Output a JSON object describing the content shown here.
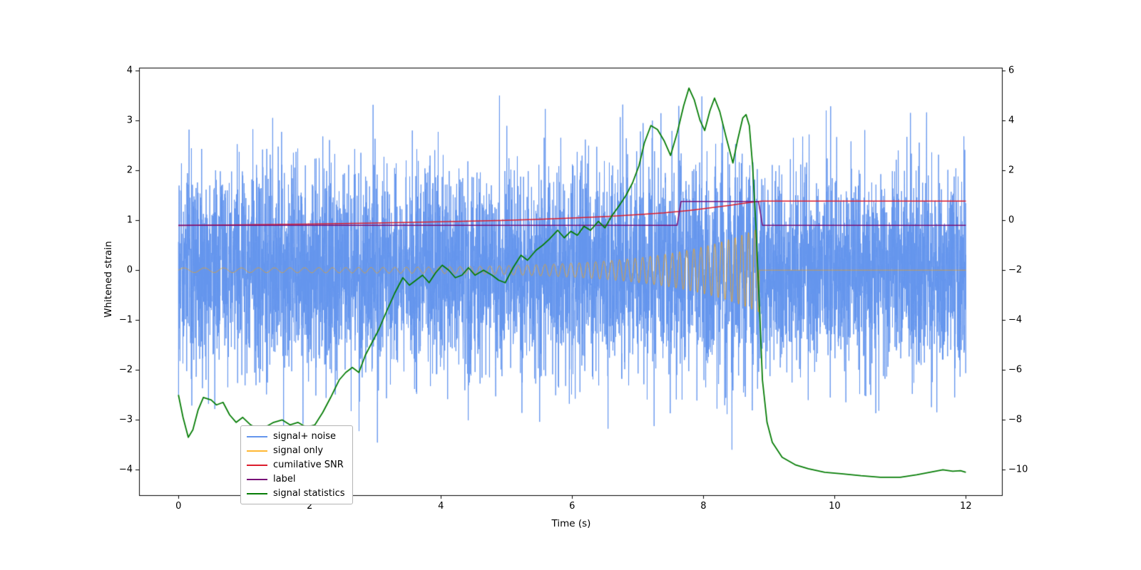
{
  "figure": {
    "background": "#ffffff"
  },
  "chart_data": {
    "type": "line",
    "title": "",
    "xlabel": "Time (s)",
    "ylabel": "Whitened strain",
    "xlim": [
      -0.6,
      12.55
    ],
    "ylim_left": [
      -4.51,
      4.06
    ],
    "right_axis_transform": "right = 2*left - 2",
    "grid": false,
    "legend_position": "lower left inside",
    "x_ticks": [
      "0",
      "2",
      "4",
      "6",
      "8",
      "10",
      "12"
    ],
    "x_tick_values": [
      0,
      2,
      4,
      6,
      8,
      10,
      12
    ],
    "left_ticks": [
      "4",
      "3",
      "2",
      "1",
      "0",
      "−1",
      "−2",
      "−3",
      "−4"
    ],
    "left_tick_values": [
      4,
      3,
      2,
      1,
      0,
      -1,
      -2,
      -3,
      -4
    ],
    "right_ticks": [
      "6",
      "4",
      "2",
      "0",
      "−2",
      "−4",
      "−6",
      "−8",
      "−10"
    ],
    "right_tick_values": [
      6,
      4,
      2,
      0,
      -2,
      -4,
      -6,
      -8,
      -10
    ],
    "series": [
      {
        "name": "signal+ noise",
        "color": "#6495ed",
        "type": "noise_plus_chirp",
        "n": 6000,
        "t_range": [
          0,
          12
        ],
        "noise_std": 1.0,
        "seed": 7,
        "linewidth": 1
      },
      {
        "name": "signal only",
        "color": "#ffa500",
        "alpha": 0.75,
        "type": "chirp",
        "n": 4800,
        "t_range": [
          0,
          12
        ],
        "cutoff": 8.85,
        "amp_base": 0.045,
        "amp_peak": 0.8,
        "amp_tau": 1.35,
        "f0": 3.0,
        "chirp_rate": 0.8,
        "linewidth": 1
      },
      {
        "name": "cumilative SNR",
        "color": "#dc1c2c",
        "type": "polyline",
        "linewidth": 1.5,
        "points": [
          [
            0,
            0.895
          ],
          [
            1,
            0.91
          ],
          [
            2,
            0.925
          ],
          [
            3,
            0.945
          ],
          [
            4,
            0.97
          ],
          [
            5,
            1.0
          ],
          [
            5.5,
            1.02
          ],
          [
            6,
            1.045
          ],
          [
            6.5,
            1.075
          ],
          [
            7,
            1.115
          ],
          [
            7.4,
            1.15
          ],
          [
            7.8,
            1.2
          ],
          [
            8.1,
            1.25
          ],
          [
            8.4,
            1.3
          ],
          [
            8.6,
            1.34
          ],
          [
            8.8,
            1.375
          ],
          [
            8.9,
            1.385
          ],
          [
            12,
            1.385
          ]
        ]
      },
      {
        "name": "label",
        "color": "#770f77",
        "type": "polyline",
        "linewidth": 1.5,
        "points": [
          [
            0,
            0.9
          ],
          [
            7.6,
            0.9
          ],
          [
            7.66,
            1.38
          ],
          [
            8.84,
            1.38
          ],
          [
            8.9,
            0.9
          ],
          [
            12,
            0.9
          ]
        ]
      },
      {
        "name": "signal statistics",
        "color": "#067d06",
        "type": "polyline",
        "linewidth": 1.8,
        "points": [
          [
            0,
            -2.5
          ],
          [
            0.07,
            -2.95
          ],
          [
            0.15,
            -3.35
          ],
          [
            0.22,
            -3.2
          ],
          [
            0.3,
            -2.8
          ],
          [
            0.38,
            -2.55
          ],
          [
            0.5,
            -2.6
          ],
          [
            0.58,
            -2.7
          ],
          [
            0.68,
            -2.65
          ],
          [
            0.78,
            -2.9
          ],
          [
            0.88,
            -3.05
          ],
          [
            0.98,
            -2.95
          ],
          [
            1.1,
            -3.1
          ],
          [
            1.22,
            -3.2
          ],
          [
            1.32,
            -3.15
          ],
          [
            1.45,
            -3.05
          ],
          [
            1.58,
            -3.0
          ],
          [
            1.7,
            -3.1
          ],
          [
            1.82,
            -3.05
          ],
          [
            1.95,
            -3.15
          ],
          [
            2.08,
            -3.1
          ],
          [
            2.2,
            -2.85
          ],
          [
            2.32,
            -2.55
          ],
          [
            2.45,
            -2.2
          ],
          [
            2.55,
            -2.05
          ],
          [
            2.65,
            -1.95
          ],
          [
            2.75,
            -2.05
          ],
          [
            2.85,
            -1.7
          ],
          [
            2.95,
            -1.45
          ],
          [
            3.05,
            -1.2
          ],
          [
            3.18,
            -0.8
          ],
          [
            3.3,
            -0.45
          ],
          [
            3.42,
            -0.15
          ],
          [
            3.52,
            -0.3
          ],
          [
            3.62,
            -0.2
          ],
          [
            3.72,
            -0.1
          ],
          [
            3.82,
            -0.25
          ],
          [
            3.92,
            -0.05
          ],
          [
            4.02,
            0.1
          ],
          [
            4.12,
            0.0
          ],
          [
            4.22,
            -0.15
          ],
          [
            4.32,
            -0.1
          ],
          [
            4.42,
            0.05
          ],
          [
            4.52,
            -0.1
          ],
          [
            4.65,
            0.0
          ],
          [
            4.78,
            -0.1
          ],
          [
            4.88,
            -0.2
          ],
          [
            4.98,
            -0.25
          ],
          [
            5.1,
            0.05
          ],
          [
            5.22,
            0.3
          ],
          [
            5.32,
            0.2
          ],
          [
            5.45,
            0.4
          ],
          [
            5.55,
            0.5
          ],
          [
            5.65,
            0.62
          ],
          [
            5.78,
            0.8
          ],
          [
            5.88,
            0.65
          ],
          [
            5.98,
            0.78
          ],
          [
            6.08,
            0.7
          ],
          [
            6.18,
            0.88
          ],
          [
            6.28,
            0.8
          ],
          [
            6.4,
            0.98
          ],
          [
            6.5,
            0.85
          ],
          [
            6.6,
            1.08
          ],
          [
            6.72,
            1.3
          ],
          [
            6.82,
            1.5
          ],
          [
            6.92,
            1.75
          ],
          [
            7.02,
            2.1
          ],
          [
            7.1,
            2.55
          ],
          [
            7.2,
            2.9
          ],
          [
            7.3,
            2.82
          ],
          [
            7.4,
            2.6
          ],
          [
            7.5,
            2.3
          ],
          [
            7.6,
            2.75
          ],
          [
            7.7,
            3.3
          ],
          [
            7.78,
            3.65
          ],
          [
            7.86,
            3.42
          ],
          [
            7.95,
            3.0
          ],
          [
            8.02,
            2.8
          ],
          [
            8.1,
            3.2
          ],
          [
            8.17,
            3.45
          ],
          [
            8.25,
            3.18
          ],
          [
            8.35,
            2.65
          ],
          [
            8.45,
            2.15
          ],
          [
            8.52,
            2.6
          ],
          [
            8.6,
            3.05
          ],
          [
            8.65,
            3.12
          ],
          [
            8.7,
            2.9
          ],
          [
            8.75,
            2.1
          ],
          [
            8.8,
            0.9
          ],
          [
            8.85,
            -0.6
          ],
          [
            8.9,
            -2.2
          ],
          [
            8.97,
            -3.05
          ],
          [
            9.05,
            -3.45
          ],
          [
            9.2,
            -3.75
          ],
          [
            9.4,
            -3.9
          ],
          [
            9.6,
            -3.98
          ],
          [
            9.85,
            -4.05
          ],
          [
            10.1,
            -4.08
          ],
          [
            10.4,
            -4.12
          ],
          [
            10.7,
            -4.15
          ],
          [
            11.0,
            -4.15
          ],
          [
            11.25,
            -4.1
          ],
          [
            11.45,
            -4.05
          ],
          [
            11.65,
            -4.0
          ],
          [
            11.8,
            -4.03
          ],
          [
            11.92,
            -4.02
          ],
          [
            12,
            -4.05
          ]
        ]
      }
    ]
  },
  "legend": {
    "items": [
      {
        "label": "signal+ noise",
        "color": "#6495ed"
      },
      {
        "label": "signal only",
        "color": "rgba(255,165,0,0.8)"
      },
      {
        "label": "cumilative SNR",
        "color": "#dc1c2c"
      },
      {
        "label": "label",
        "color": "#770f77"
      },
      {
        "label": "signal statistics",
        "color": "#067d06"
      }
    ]
  }
}
